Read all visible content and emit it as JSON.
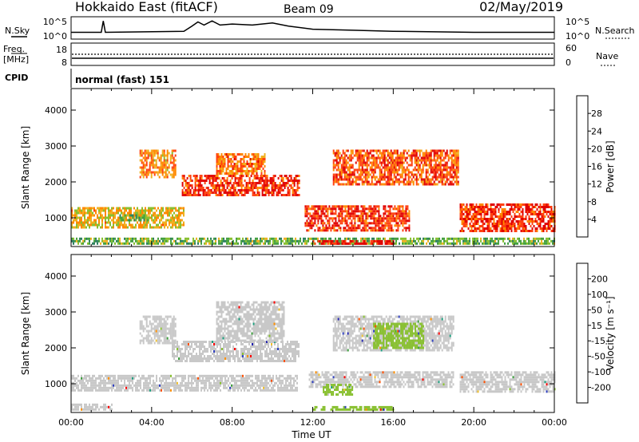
{
  "header": {
    "radar": "Hokkaido East (fitACF)",
    "beam": "Beam 09",
    "date": "02/May/2019"
  },
  "top_panels": {
    "nsky_label": "N.Sky",
    "nsky_ticks": [
      "10^5",
      "10^0"
    ],
    "nsearch_label": "N.Search",
    "nsearch_ticks": [
      "10^5",
      "10^0"
    ],
    "freq_label_line1": "Freq.",
    "freq_label_line2": "[MHz]",
    "freq_ticks": [
      "18",
      "8"
    ],
    "nave_label": "Nave",
    "nave_ticks": [
      "60",
      "0"
    ],
    "cpid_label": "CPID",
    "cpid_text": "normal (fast) 151"
  },
  "time_axis": {
    "label": "Time UT",
    "ticks": [
      "00:00",
      "04:00",
      "08:00",
      "12:00",
      "16:00",
      "20:00",
      "00:00"
    ]
  },
  "colors": {
    "power_scale": [
      "#1414ff",
      "#2a50b8",
      "#2e8060",
      "#44a040",
      "#88c030",
      "#f0b020",
      "#ff8800",
      "#ff4010",
      "#e00000"
    ],
    "velocity_scale": [
      "#ff0000",
      "#ff5000",
      "#ff9000",
      "#f0c030",
      "#c8c8c8",
      "#c8c8c8",
      "#88c030",
      "#40a040",
      "#20a080",
      "#3040c0",
      "#2020b0"
    ]
  },
  "chart_data": [
    {
      "type": "heatmap",
      "title": "",
      "ylabel": "Slant Range [km]",
      "ylim": [
        200,
        4600
      ],
      "xlim_hours": [
        0,
        24
      ],
      "yticks": [
        "1000",
        "2000",
        "3000",
        "4000"
      ],
      "colorbar_label": "Power [dB]",
      "colorbar_ticks": [
        "4",
        "8",
        "12",
        "16",
        "20",
        "24",
        "28"
      ],
      "colorbar_range": [
        0,
        32
      ],
      "regions": [
        {
          "start_h": 0.0,
          "end_h": 5.6,
          "range_km": [
            750,
            1300
          ],
          "level": 20
        },
        {
          "start_h": 2.4,
          "end_h": 3.9,
          "range_km": [
            900,
            1100
          ],
          "level": 14
        },
        {
          "start_h": 5.5,
          "end_h": 11.3,
          "range_km": [
            1600,
            2200
          ],
          "level": 28
        },
        {
          "start_h": 3.4,
          "end_h": 5.2,
          "range_km": [
            2100,
            2900
          ],
          "level": 22
        },
        {
          "start_h": 7.2,
          "end_h": 9.6,
          "range_km": [
            2200,
            2800
          ],
          "level": 24
        },
        {
          "start_h": 11.6,
          "end_h": 16.8,
          "range_km": [
            650,
            1350
          ],
          "level": 28
        },
        {
          "start_h": 13.0,
          "end_h": 19.2,
          "range_km": [
            1900,
            2900
          ],
          "level": 26
        },
        {
          "start_h": 19.3,
          "end_h": 24.0,
          "range_km": [
            650,
            1400
          ],
          "level": 28
        },
        {
          "start_h": 0.0,
          "end_h": 24.0,
          "range_km": [
            250,
            450
          ],
          "level": 14
        },
        {
          "start_h": 12.0,
          "end_h": 16.0,
          "range_km": [
            250,
            380
          ],
          "level": 30
        }
      ]
    },
    {
      "type": "heatmap",
      "title": "",
      "ylabel": "Slant Range [km]",
      "ylim": [
        200,
        4600
      ],
      "xlim_hours": [
        0,
        24
      ],
      "yticks": [
        "1000",
        "2000",
        "3000",
        "4000"
      ],
      "colorbar_label": "Velocity [m s⁻¹]",
      "colorbar_ticks": [
        "-200",
        "-100",
        "-50",
        "-15",
        "15",
        "50",
        "100",
        "200"
      ],
      "colorbar_range": [
        -250,
        250
      ],
      "regions": [
        {
          "start_h": 0.0,
          "end_h": 11.2,
          "range_km": [
            800,
            1250
          ],
          "velocity": 0
        },
        {
          "start_h": 5.0,
          "end_h": 11.3,
          "range_km": [
            1600,
            2200
          ],
          "velocity": 0
        },
        {
          "start_h": 3.4,
          "end_h": 5.2,
          "range_km": [
            2100,
            2900
          ],
          "velocity": 0
        },
        {
          "start_h": 7.2,
          "end_h": 10.6,
          "range_km": [
            2200,
            3300
          ],
          "velocity": 0
        },
        {
          "start_h": 11.8,
          "end_h": 19.0,
          "range_km": [
            900,
            1350
          ],
          "velocity": 0
        },
        {
          "start_h": 12.5,
          "end_h": 14.0,
          "range_km": [
            700,
            1000
          ],
          "velocity": 40
        },
        {
          "start_h": 13.0,
          "end_h": 19.0,
          "range_km": [
            1900,
            2900
          ],
          "velocity": 0
        },
        {
          "start_h": 15.0,
          "end_h": 17.5,
          "range_km": [
            2000,
            2700
          ],
          "velocity": 40
        },
        {
          "start_h": 19.3,
          "end_h": 24.0,
          "range_km": [
            750,
            1350
          ],
          "velocity": 0
        },
        {
          "start_h": 0.0,
          "end_h": 2.0,
          "range_km": [
            250,
            450
          ],
          "velocity": -20
        },
        {
          "start_h": 12.0,
          "end_h": 16.0,
          "range_km": [
            250,
            380
          ],
          "velocity": 40
        }
      ]
    }
  ],
  "nsky_series_hours": [
    0,
    1.5,
    1.6,
    1.7,
    5.6,
    6.0,
    6.3,
    6.6,
    7.0,
    7.4,
    8.0,
    9.0,
    10.0,
    10.8,
    12.0,
    14.0,
    16.0,
    20.0,
    24.0
  ],
  "nsky_series_level": [
    0.25,
    0.25,
    0.8,
    0.25,
    0.3,
    0.55,
    0.75,
    0.6,
    0.8,
    0.6,
    0.65,
    0.6,
    0.7,
    0.55,
    0.4,
    0.35,
    0.3,
    0.25,
    0.25
  ]
}
